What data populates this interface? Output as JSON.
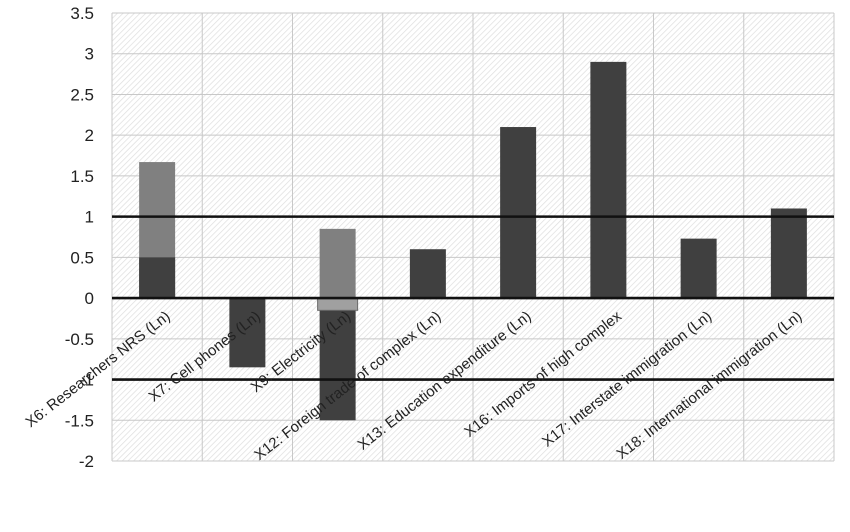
{
  "chart_data": {
    "type": "bar",
    "categories": [
      "X6:  Researchers NRS (Ln)",
      "X7: Cell phones (Ln)",
      "X9: Electricity (Ln)",
      "X12: Foreign trade of complex  (Ln)",
      "X13: Education expenditure  (Ln)",
      "X16: Imports of high complex",
      "X17: Interstate immigration  (Ln)",
      "X18: International immigration  (Ln)"
    ],
    "series": [
      {
        "values": [
          0.5,
          -0.85,
          -1.5,
          0.6,
          2.1,
          2.9,
          0.73,
          1.1
        ]
      },
      {
        "values": [
          1.67,
          null,
          0.85,
          null,
          null,
          null,
          null,
          null
        ]
      },
      {
        "values": [
          null,
          null,
          -0.15,
          null,
          null,
          null,
          null,
          null
        ]
      }
    ],
    "ylim": [
      -2,
      3.5
    ],
    "yticks": [
      "3.5",
      "3",
      "2.5",
      "2",
      "1.5",
      "1",
      "0.5",
      "0",
      "-0.5",
      "-1",
      "-1.5",
      "-2"
    ],
    "reference_lines": [
      1,
      0,
      -1
    ],
    "grid": true,
    "colors": {
      "dark": "#404040",
      "light": "#808080",
      "lighter": "#a0a0a0",
      "line": "#111111",
      "grid": "#c8c8c8"
    }
  }
}
